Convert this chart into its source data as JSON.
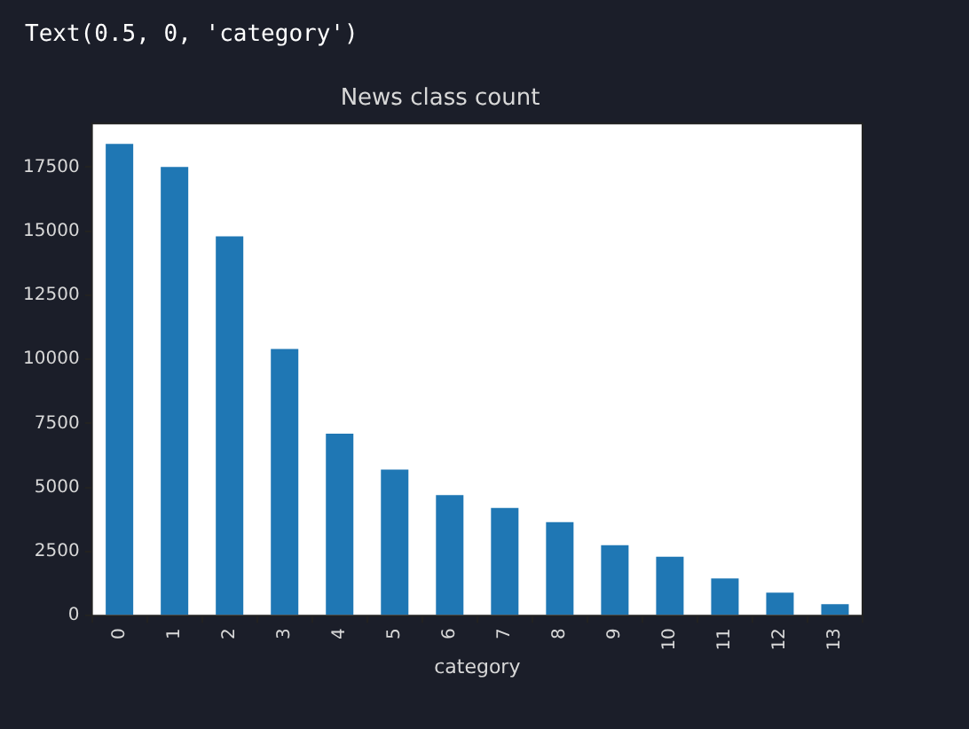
{
  "chart_data": {
    "type": "bar",
    "title": "News class count",
    "xlabel": "category",
    "annotations": [
      "Text(0.5, 0, 'category')"
    ],
    "categories": [
      "0",
      "1",
      "2",
      "3",
      "4",
      "5",
      "6",
      "7",
      "8",
      "9",
      "10",
      "11",
      "12",
      "13"
    ],
    "values": [
      18400,
      17500,
      14800,
      10400,
      7100,
      5700,
      4700,
      4200,
      3650,
      2750,
      2300,
      1450,
      900,
      450
    ],
    "color": "#1f77b4",
    "ylim": [
      0,
      19200
    ],
    "yticks": [
      0,
      2500,
      5000,
      7500,
      10000,
      12500,
      15000,
      17500
    ],
    "grid": false
  }
}
